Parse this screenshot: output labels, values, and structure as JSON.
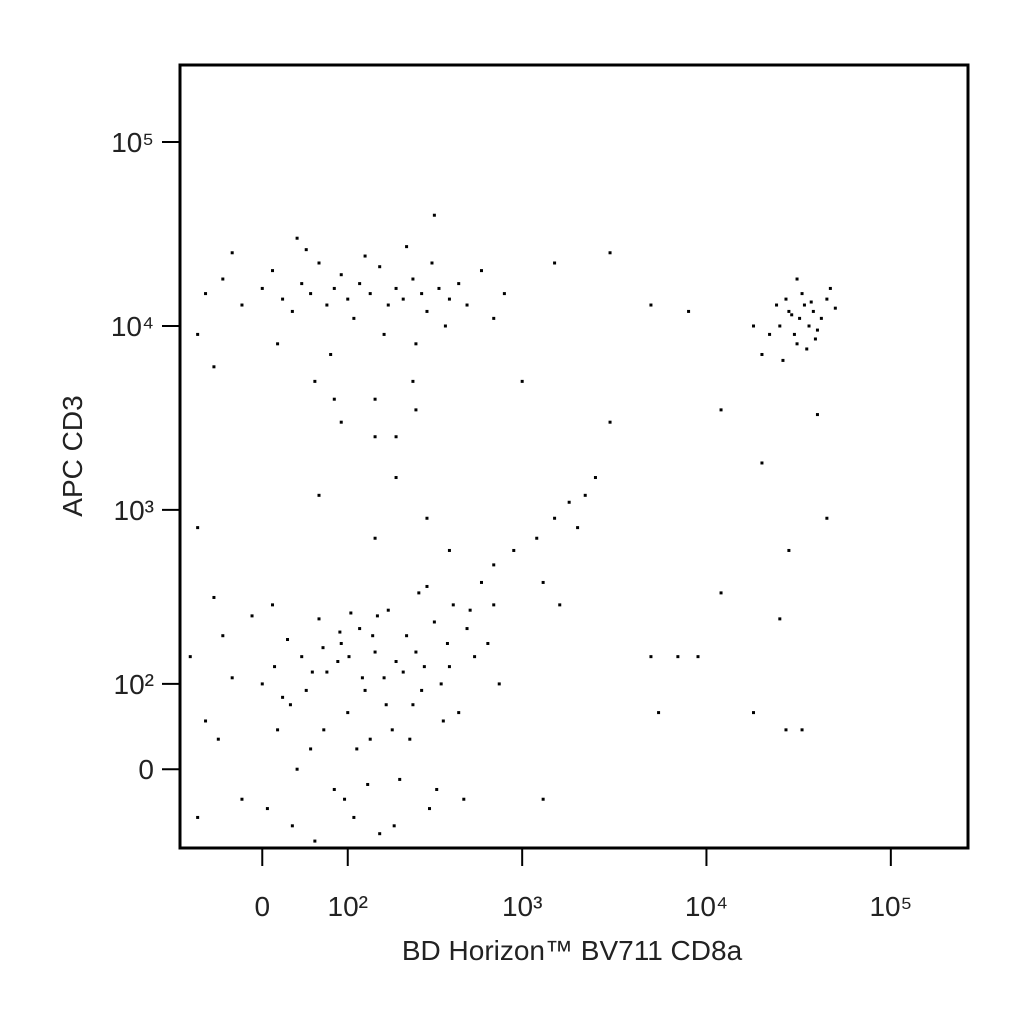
{
  "chart_data": {
    "type": "scatter",
    "x_label": "BD Horizon™ BV711 CD8a",
    "y_label": "APC   CD3",
    "color": "#000000",
    "xlim": [
      -95,
      262144
    ],
    "ylim": [
      -90,
      262144
    ],
    "xticks": [
      0,
      {
        "value": 100,
        "label": "10²"
      },
      {
        "value": 1000,
        "label": "10³"
      },
      {
        "value": 10000,
        "label": "10⁴"
      },
      {
        "value": 100000,
        "label": "10⁵"
      }
    ],
    "yticks": [
      0,
      {
        "value": 100,
        "label": "10²"
      },
      {
        "value": 1000,
        "label": "10³"
      },
      {
        "value": 10000,
        "label": "10⁴"
      },
      {
        "value": 100000,
        "label": "10⁵"
      }
    ],
    "x": [
      -60,
      -40,
      -20,
      0,
      10,
      20,
      30,
      40,
      50,
      60,
      70,
      80,
      90,
      100,
      110,
      120,
      140,
      160,
      180,
      200,
      220,
      250,
      280,
      300,
      350,
      400,
      450,
      500,
      600,
      700,
      -70,
      -30,
      15,
      45,
      75,
      130,
      170,
      230,
      260,
      320,
      380,
      800,
      -50,
      55,
      150,
      90,
      200,
      260,
      35,
      330,
      25000,
      28000,
      30000,
      32000,
      34000,
      36000,
      38000,
      40000,
      27000,
      31000,
      33000,
      35000,
      29000,
      37000,
      42000,
      45000,
      22000,
      20000,
      50000,
      24000,
      39000,
      26000,
      47000,
      31000,
      18000,
      -80,
      -60,
      -40,
      -20,
      0,
      10,
      20,
      30,
      40,
      50,
      60,
      70,
      80,
      90,
      100,
      110,
      120,
      130,
      140,
      150,
      160,
      170,
      180,
      190,
      200,
      210,
      230,
      250,
      270,
      290,
      310,
      330,
      360,
      390,
      420,
      450,
      500,
      550,
      600,
      700,
      -70,
      -50,
      -30,
      -10,
      5,
      15,
      25,
      35,
      45,
      55,
      65,
      85,
      95,
      105,
      115,
      125,
      145,
      175,
      195,
      240,
      260,
      280,
      300,
      340,
      370,
      400,
      480,
      520,
      650,
      750,
      -45,
      12,
      28,
      52,
      66,
      88,
      102,
      135,
      155,
      220,
      700,
      900,
      1200,
      1500,
      1800,
      2000,
      2500,
      1300,
      1600,
      2200,
      400,
      300,
      150,
      60,
      -70,
      200,
      150,
      80,
      250,
      5000,
      7000,
      9000,
      5500,
      18000,
      25000,
      27000,
      33000,
      28000,
      45000,
      12000,
      3000,
      3000,
      1500,
      12000,
      8000,
      5000,
      40000,
      20000,
      1000,
      1300
    ],
    "values": [
      15000,
      18000,
      13000,
      16000,
      20000,
      14000,
      12000,
      17000,
      15000,
      22000,
      13000,
      16000,
      19000,
      14000,
      11000,
      17000,
      15000,
      21000,
      13000,
      16000,
      14000,
      18000,
      15000,
      12000,
      16000,
      14000,
      17000,
      13000,
      20000,
      11000,
      9000,
      25000,
      8000,
      26000,
      7000,
      24000,
      9000,
      27000,
      8000,
      22000,
      10000,
      15000,
      6000,
      5000,
      4000,
      3000,
      2500,
      3500,
      30000,
      40000,
      10000,
      12000,
      9000,
      11000,
      13000,
      10000,
      12000,
      9500,
      14000,
      8000,
      15000,
      7500,
      11500,
      13500,
      11000,
      14000,
      9000,
      7000,
      12500,
      13000,
      8500,
      6500,
      16000,
      18000,
      10000,
      150,
      50,
      200,
      -30,
      100,
      300,
      80,
      -60,
      150,
      20,
      250,
      120,
      -20,
      180,
      60,
      -50,
      220,
      90,
      30,
      160,
      -70,
      110,
      280,
      40,
      140,
      -10,
      200,
      70,
      350,
      130,
      -40,
      240,
      100,
      180,
      300,
      60,
      220,
      150,
      400,
      300,
      -50,
      330,
      110,
      260,
      -40,
      40,
      190,
      0,
      90,
      -80,
      170,
      140,
      -30,
      270,
      20,
      110,
      200,
      70,
      -60,
      30,
      160,
      90,
      380,
      -20,
      50,
      130,
      -30,
      280,
      180,
      100,
      30,
      130,
      70,
      120,
      40,
      210,
      150,
      -15,
      260,
      120,
      500,
      600,
      700,
      900,
      1100,
      800,
      1500,
      400,
      300,
      1200,
      600,
      900,
      700,
      1200,
      800,
      1500,
      2500,
      4000,
      5000,
      150,
      150,
      150,
      60,
      60,
      250,
      40,
      40,
      600,
      900,
      350,
      3000,
      25000,
      22000,
      3500,
      12000,
      13000,
      3300,
      1800,
      5000,
      -30
    ]
  }
}
